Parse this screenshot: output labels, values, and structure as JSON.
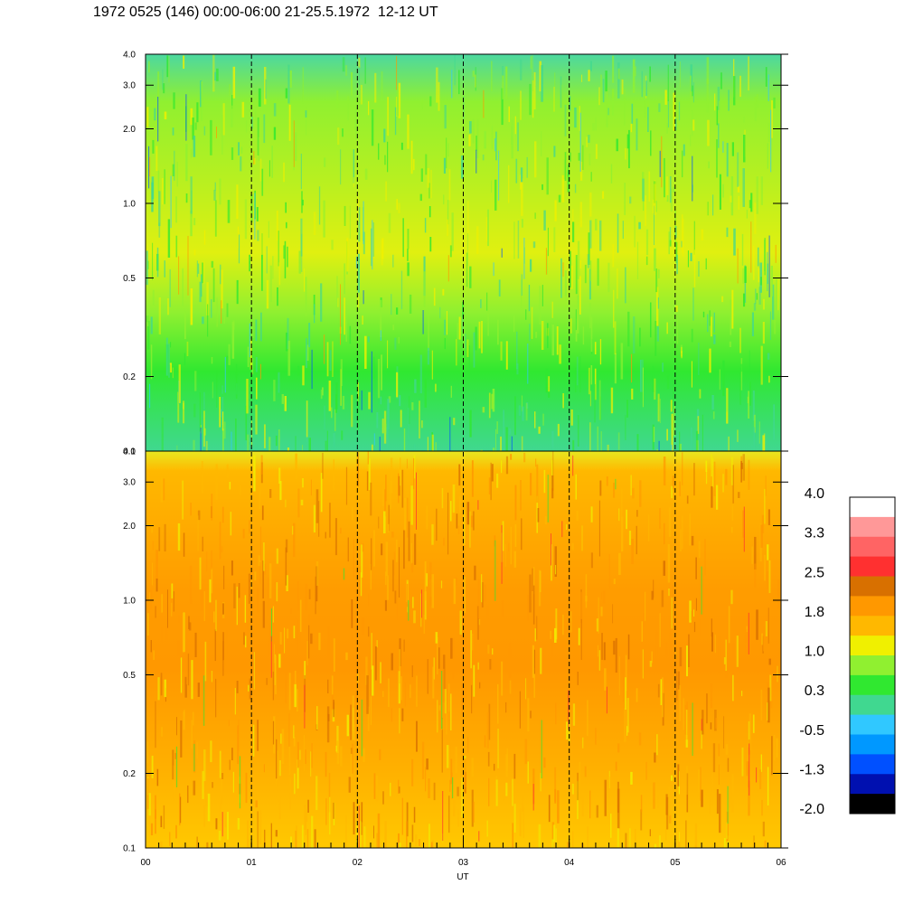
{
  "title": "1972 0525 (146) 00:00-06:00 21-25.5.1972  12-12 UT",
  "chart_data": {
    "type": "heatmap",
    "xlabel": "UT",
    "x_ticks": [
      "00",
      "01",
      "02",
      "03",
      "04",
      "05",
      "06"
    ],
    "xlim": [
      0,
      6
    ],
    "vertical_dashed_lines_at": [
      1,
      2,
      3,
      4,
      5
    ],
    "panels": [
      {
        "name": "upper",
        "ylim": [
          0.1,
          4.0
        ],
        "yscale": "log",
        "y_ticks": [
          "0.1",
          "0.2",
          "0.5",
          "1.0",
          "2.0",
          "3.0",
          "4.0"
        ],
        "dominant_colors": [
          "#30e830",
          "#90f030",
          "#f0f000",
          "#40d890"
        ]
      },
      {
        "name": "lower",
        "ylim": [
          0.1,
          4.0
        ],
        "yscale": "log",
        "y_ticks": [
          "0.1",
          "0.2",
          "0.5",
          "1.0",
          "2.0",
          "3.0",
          "4.0"
        ],
        "dominant_colors": [
          "#ff9800",
          "#ffb800",
          "#f0f000",
          "#d87000"
        ]
      }
    ],
    "colorbar": {
      "labels": [
        "4.0",
        "3.3",
        "2.5",
        "1.8",
        "1.0",
        "0.3",
        "-0.5",
        "-1.3",
        "-2.0"
      ],
      "colors": [
        "#ffffff",
        "#ff9898",
        "#ff6464",
        "#ff3030",
        "#d87000",
        "#ff9800",
        "#ffb800",
        "#f0f000",
        "#90f030",
        "#30e830",
        "#40d890",
        "#30c8ff",
        "#0098ff",
        "#0050ff",
        "#0010b0",
        "#000000"
      ]
    }
  }
}
